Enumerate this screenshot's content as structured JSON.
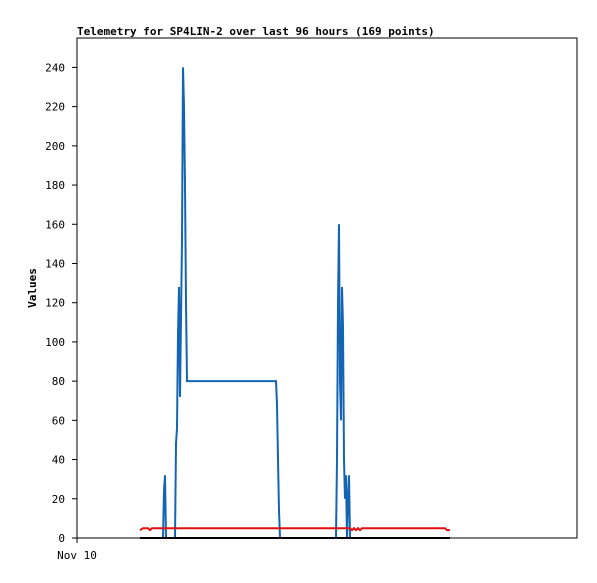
{
  "chart_data": {
    "type": "line",
    "title": "Telemetry for SP4LIN-2 over last 96 hours (169 points)",
    "y_label": "Values",
    "xlim": [
      0,
      100
    ],
    "xticks": [
      {
        "value": 0,
        "label": "Nov 10"
      }
    ],
    "ylim": [
      0,
      255
    ],
    "yticks": [
      0,
      20,
      40,
      60,
      80,
      100,
      120,
      140,
      160,
      180,
      200,
      220,
      240
    ],
    "series": [
      {
        "color": "#1464b4",
        "x": [
          17.2,
          17.4,
          17.6,
          17.8,
          19.6,
          19.8,
          20,
          20.2,
          20.4,
          20.6,
          20.8,
          21,
          21.2,
          21.4,
          21.6,
          21.8,
          22,
          39.8,
          40,
          40.2,
          40.4,
          40.6,
          51.8,
          52,
          52.2,
          52.4,
          52.6,
          52.8,
          53,
          53.2,
          53.4,
          53.6,
          53.8,
          54,
          54.2,
          54.4,
          54.6
        ],
        "values": [
          0,
          24,
          32,
          0,
          0,
          48,
          56,
          104,
          128,
          72,
          112,
          152,
          240,
          220,
          180,
          120,
          80,
          80,
          68,
          40,
          14,
          0,
          0,
          40,
          120,
          160,
          80,
          60,
          128,
          108,
          40,
          20,
          32,
          0,
          20,
          32,
          0
        ]
      },
      {
        "color": "#e01010",
        "x": [
          12.6,
          13.2,
          14.2,
          14.6,
          15,
          54.6,
          55,
          55.4,
          55.8,
          56.2,
          56.6,
          57,
          73.6,
          74,
          74.6
        ],
        "values": [
          4,
          5,
          5,
          4,
          5,
          5,
          4,
          5,
          4,
          5,
          4,
          5,
          5,
          4,
          4
        ]
      },
      {
        "color": "#000000",
        "x": [
          12.6,
          74.6
        ],
        "values": [
          0,
          0
        ]
      }
    ]
  }
}
